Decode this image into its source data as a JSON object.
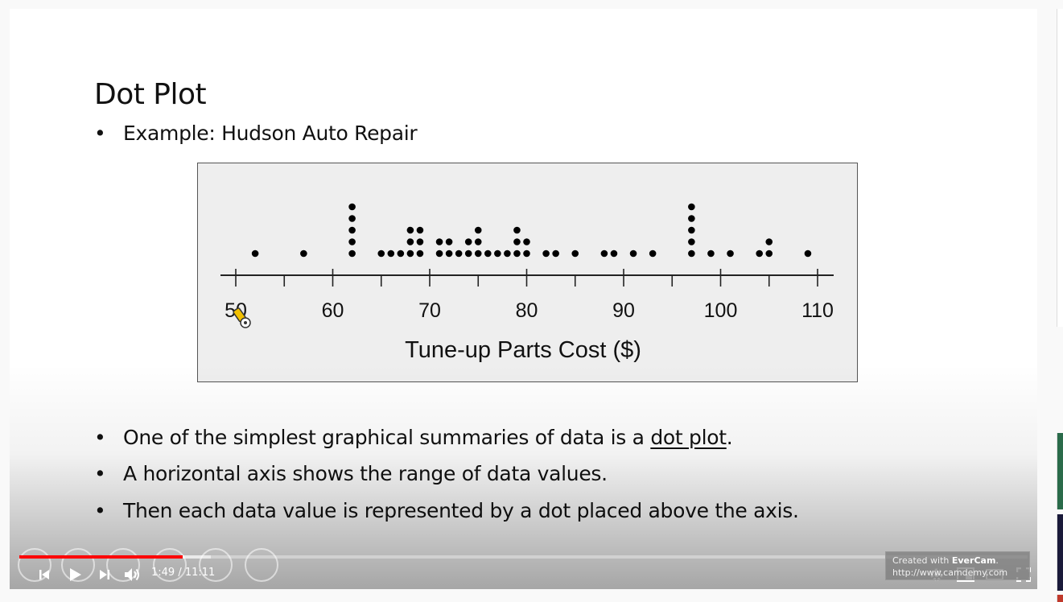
{
  "slide": {
    "title": "Dot Plot",
    "subtitle_bullet": "Example:  Hudson Auto Repair",
    "bullets": [
      {
        "before": "One of the simplest graphical summaries of data is a ",
        "link": "dot plot",
        "after": "."
      },
      {
        "text": "A horizontal axis shows the range of data values."
      },
      {
        "text": "Then each data value is represented by a dot placed above the axis."
      }
    ]
  },
  "chart_data": {
    "type": "scatter",
    "xlabel": "Tune-up Parts Cost ($)",
    "xlim": [
      50,
      110
    ],
    "xticks": [
      50,
      60,
      70,
      80,
      90,
      100,
      110
    ],
    "xtick_labels": [
      "50",
      "60",
      "70",
      "80",
      "90",
      "100",
      "110"
    ],
    "dot_counts": [
      {
        "x": 52,
        "count": 1
      },
      {
        "x": 57,
        "count": 1
      },
      {
        "x": 62,
        "count": 5
      },
      {
        "x": 65,
        "count": 1
      },
      {
        "x": 66,
        "count": 1
      },
      {
        "x": 67,
        "count": 1
      },
      {
        "x": 68,
        "count": 3
      },
      {
        "x": 69,
        "count": 3
      },
      {
        "x": 71,
        "count": 2
      },
      {
        "x": 72,
        "count": 2
      },
      {
        "x": 73,
        "count": 1
      },
      {
        "x": 74,
        "count": 2
      },
      {
        "x": 75,
        "count": 3
      },
      {
        "x": 76,
        "count": 1
      },
      {
        "x": 77,
        "count": 1
      },
      {
        "x": 78,
        "count": 1
      },
      {
        "x": 79,
        "count": 3
      },
      {
        "x": 80,
        "count": 2
      },
      {
        "x": 82,
        "count": 1
      },
      {
        "x": 83,
        "count": 1
      },
      {
        "x": 85,
        "count": 1
      },
      {
        "x": 88,
        "count": 1
      },
      {
        "x": 89,
        "count": 1
      },
      {
        "x": 91,
        "count": 1
      },
      {
        "x": 93,
        "count": 1
      },
      {
        "x": 97,
        "count": 5
      },
      {
        "x": 99,
        "count": 1
      },
      {
        "x": 101,
        "count": 1
      },
      {
        "x": 104,
        "count": 1
      },
      {
        "x": 105,
        "count": 2
      },
      {
        "x": 109,
        "count": 1
      }
    ]
  },
  "player": {
    "current_time": "1:49",
    "duration": "11:11",
    "time_display": "1:49 / 11:11",
    "played_fraction": 0.162,
    "buffered_fraction": 0.19,
    "accent_color": "#ff0000",
    "icons": [
      "previous-icon",
      "play-icon",
      "next-icon",
      "volume-icon",
      "settings-icon",
      "miniplayer-icon",
      "theater-icon",
      "fullscreen-icon"
    ]
  },
  "watermark": {
    "line1_prefix": "Created with ",
    "brand": "EverCam",
    "line1_suffix": ".",
    "line2": "http://www.camdemy.com"
  }
}
